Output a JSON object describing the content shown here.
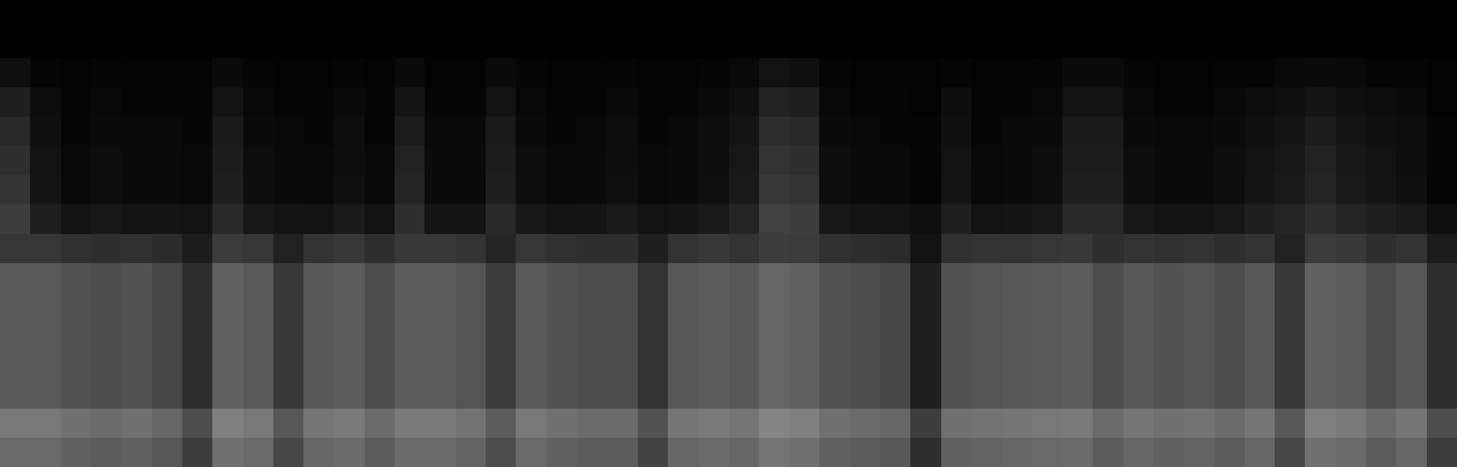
{
  "chart_data": {
    "type": "heatmap",
    "tick_labels": false,
    "zlim": [
      0,
      100
    ],
    "cells": [
      [
        0,
        0,
        0,
        0,
        0,
        0,
        0,
        0,
        0,
        0,
        0,
        0,
        0,
        0,
        0,
        0,
        0,
        0,
        0,
        0,
        0,
        0,
        0,
        0,
        0,
        0,
        0,
        0,
        0,
        0,
        0,
        0,
        0,
        0,
        0,
        0,
        0,
        0,
        0,
        0,
        0,
        0,
        0,
        0,
        0,
        0,
        0,
        0
      ],
      [
        0,
        0,
        0,
        0,
        0,
        0,
        0,
        0,
        0,
        0,
        0,
        0,
        0,
        0,
        0,
        0,
        0,
        0,
        0,
        0,
        0,
        0,
        0,
        0,
        0,
        0,
        0,
        0,
        0,
        0,
        0,
        0,
        0,
        0,
        0,
        0,
        0,
        0,
        0,
        0,
        0,
        0,
        0,
        0,
        0,
        0,
        0,
        0
      ],
      [
        6,
        2,
        1,
        2,
        1,
        1,
        1,
        4,
        2,
        1,
        1,
        2,
        1,
        4,
        1,
        1,
        4,
        2,
        1,
        1,
        2,
        1,
        1,
        2,
        3,
        7,
        6,
        2,
        1,
        1,
        1,
        2,
        1,
        1,
        2,
        4,
        4,
        2,
        1,
        1,
        2,
        2,
        3,
        4,
        3,
        2,
        2,
        1
      ],
      [
        12,
        5,
        2,
        3,
        2,
        2,
        2,
        7,
        3,
        2,
        2,
        4,
        2,
        8,
        2,
        2,
        7,
        3,
        2,
        2,
        4,
        2,
        2,
        4,
        6,
        13,
        12,
        3,
        2,
        2,
        1,
        5,
        2,
        2,
        3,
        7,
        7,
        3,
        2,
        2,
        3,
        5,
        6,
        8,
        6,
        5,
        4,
        1
      ],
      [
        16,
        6,
        2,
        4,
        3,
        3,
        2,
        10,
        4,
        3,
        2,
        5,
        2,
        11,
        3,
        3,
        10,
        4,
        2,
        3,
        5,
        2,
        3,
        5,
        8,
        18,
        16,
        4,
        3,
        2,
        2,
        6,
        2,
        3,
        4,
        10,
        10,
        4,
        3,
        3,
        4,
        6,
        8,
        11,
        8,
        6,
        5,
        2
      ],
      [
        18,
        7,
        3,
        5,
        4,
        4,
        3,
        11,
        5,
        4,
        3,
        5,
        3,
        13,
        4,
        4,
        11,
        5,
        3,
        4,
        5,
        3,
        4,
        5,
        9,
        20,
        18,
        5,
        4,
        3,
        2,
        7,
        3,
        4,
        5,
        11,
        11,
        5,
        4,
        4,
        5,
        7,
        9,
        13,
        9,
        7,
        5,
        2
      ],
      [
        20,
        8,
        3,
        5,
        4,
        4,
        3,
        12,
        5,
        4,
        3,
        6,
        3,
        14,
        4,
        4,
        12,
        5,
        3,
        4,
        6,
        3,
        4,
        6,
        10,
        22,
        20,
        5,
        4,
        3,
        2,
        8,
        3,
        4,
        5,
        12,
        12,
        5,
        4,
        4,
        5,
        8,
        10,
        14,
        10,
        8,
        6,
        2
      ],
      [
        24,
        12,
        7,
        9,
        8,
        8,
        7,
        16,
        9,
        8,
        7,
        10,
        7,
        18,
        8,
        8,
        16,
        9,
        7,
        8,
        10,
        7,
        8,
        10,
        14,
        26,
        24,
        9,
        8,
        7,
        6,
        12,
        7,
        8,
        9,
        16,
        16,
        9,
        8,
        8,
        9,
        12,
        14,
        18,
        14,
        12,
        10,
        6
      ],
      [
        21,
        21,
        19,
        18,
        19,
        17,
        11,
        23,
        21,
        13,
        20,
        22,
        18,
        22,
        22,
        20,
        14,
        21,
        19,
        18,
        18,
        12,
        20,
        22,
        20,
        24,
        23,
        19,
        18,
        17,
        7,
        19,
        20,
        20,
        21,
        22,
        18,
        20,
        19,
        20,
        18,
        20,
        13,
        23,
        22,
        18,
        20,
        11
      ],
      [
        35,
        35,
        32,
        30,
        32,
        28,
        18,
        38,
        35,
        22,
        34,
        36,
        30,
        36,
        36,
        33,
        24,
        35,
        32,
        30,
        30,
        20,
        34,
        36,
        34,
        40,
        38,
        32,
        30,
        28,
        12,
        32,
        33,
        34,
        35,
        36,
        30,
        34,
        32,
        33,
        30,
        34,
        22,
        38,
        36,
        30,
        34,
        18
      ],
      [
        35,
        35,
        32,
        30,
        32,
        28,
        18,
        38,
        35,
        22,
        34,
        36,
        30,
        36,
        36,
        33,
        24,
        35,
        32,
        30,
        30,
        20,
        34,
        36,
        34,
        40,
        38,
        32,
        30,
        28,
        12,
        32,
        33,
        34,
        35,
        36,
        30,
        34,
        32,
        33,
        30,
        34,
        22,
        38,
        36,
        30,
        34,
        18
      ],
      [
        35,
        35,
        32,
        30,
        32,
        28,
        18,
        38,
        35,
        22,
        34,
        36,
        30,
        36,
        36,
        33,
        24,
        35,
        32,
        30,
        30,
        20,
        34,
        36,
        34,
        40,
        38,
        32,
        30,
        28,
        12,
        32,
        33,
        34,
        35,
        36,
        30,
        34,
        32,
        33,
        30,
        34,
        22,
        38,
        36,
        30,
        34,
        18
      ],
      [
        35,
        35,
        32,
        30,
        32,
        28,
        18,
        38,
        35,
        22,
        34,
        36,
        30,
        36,
        36,
        33,
        24,
        35,
        32,
        30,
        30,
        20,
        34,
        36,
        34,
        40,
        38,
        32,
        30,
        28,
        12,
        32,
        33,
        34,
        35,
        36,
        30,
        34,
        32,
        33,
        30,
        34,
        22,
        38,
        36,
        30,
        34,
        18
      ],
      [
        35,
        35,
        32,
        30,
        32,
        28,
        18,
        38,
        35,
        22,
        34,
        36,
        30,
        36,
        36,
        33,
        24,
        35,
        32,
        30,
        30,
        20,
        34,
        36,
        34,
        40,
        38,
        32,
        30,
        28,
        12,
        32,
        33,
        34,
        35,
        36,
        30,
        34,
        32,
        33,
        30,
        34,
        22,
        38,
        36,
        30,
        34,
        18
      ],
      [
        47,
        47,
        44,
        42,
        44,
        40,
        30,
        50,
        47,
        34,
        46,
        48,
        42,
        48,
        48,
        45,
        36,
        47,
        44,
        42,
        42,
        32,
        46,
        48,
        46,
        52,
        50,
        44,
        42,
        40,
        24,
        44,
        45,
        46,
        47,
        48,
        42,
        46,
        44,
        45,
        42,
        46,
        34,
        50,
        48,
        42,
        46,
        30
      ],
      [
        41,
        41,
        38,
        36,
        38,
        34,
        24,
        44,
        41,
        28,
        40,
        42,
        36,
        42,
        42,
        39,
        30,
        41,
        38,
        36,
        36,
        26,
        40,
        42,
        40,
        46,
        44,
        38,
        36,
        34,
        18,
        38,
        39,
        40,
        41,
        42,
        36,
        40,
        38,
        39,
        36,
        40,
        28,
        44,
        42,
        36,
        40,
        24
      ]
    ]
  }
}
